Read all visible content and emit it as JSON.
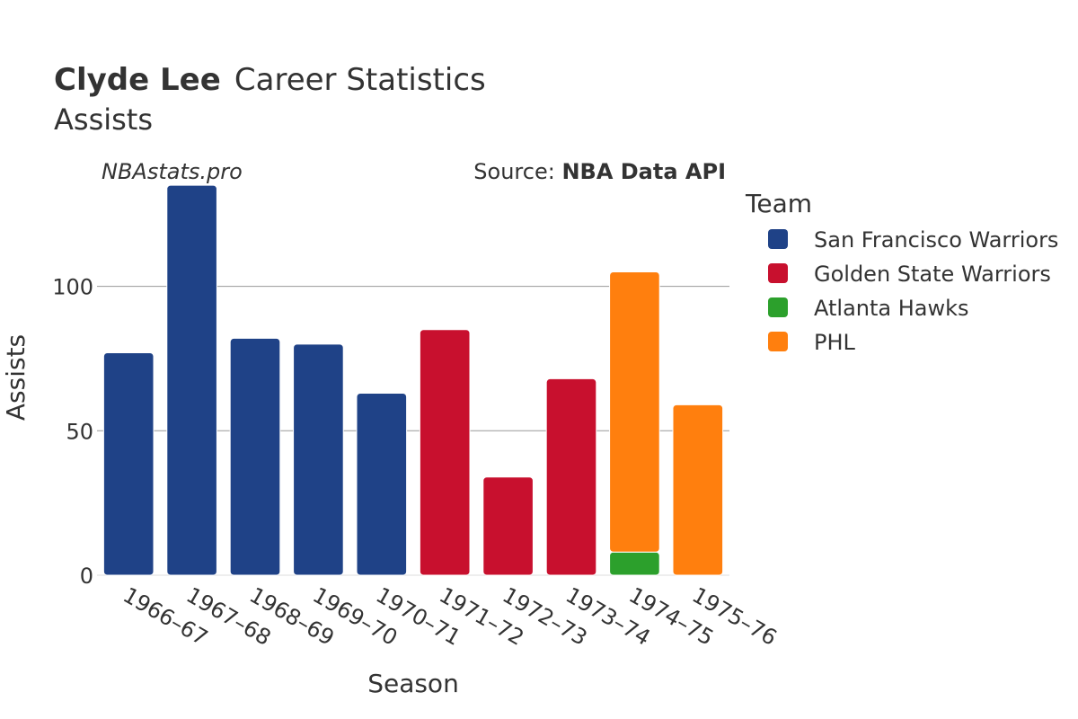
{
  "header": {
    "title_bold": "Clyde Lee",
    "title_rest": "Career Statistics",
    "subtitle": "Assists",
    "watermark": "NBAstats.pro",
    "source_prefix": "Source: ",
    "source_name": "NBA Data API"
  },
  "legend": {
    "title": "Team",
    "items": [
      {
        "label": "San Francisco Warriors",
        "color": "#1f4287"
      },
      {
        "label": "Golden State Warriors",
        "color": "#c8102e"
      },
      {
        "label": "Atlanta Hawks",
        "color": "#2ca02c"
      },
      {
        "label": "PHL",
        "color": "#ff7f0e"
      }
    ]
  },
  "chart_data": {
    "type": "bar",
    "stacked": true,
    "xlabel": "Season",
    "ylabel": "Assists",
    "ylim": [
      0,
      140
    ],
    "yticks": [
      0,
      50,
      100
    ],
    "grid": true,
    "legend_position": "right",
    "categories": [
      "1966–67",
      "1967–68",
      "1968–69",
      "1969–70",
      "1970–71",
      "1971–72",
      "1972–73",
      "1973–74",
      "1974–75",
      "1975–76"
    ],
    "series": [
      {
        "name": "San Francisco Warriors",
        "color": "#1f4287",
        "values": [
          77,
          135,
          82,
          80,
          63,
          0,
          0,
          0,
          0,
          0
        ]
      },
      {
        "name": "Golden State Warriors",
        "color": "#c8102e",
        "values": [
          0,
          0,
          0,
          0,
          0,
          85,
          34,
          68,
          0,
          0
        ]
      },
      {
        "name": "Atlanta Hawks",
        "color": "#2ca02c",
        "values": [
          0,
          0,
          0,
          0,
          0,
          0,
          0,
          0,
          8,
          0
        ]
      },
      {
        "name": "PHL",
        "color": "#ff7f0e",
        "values": [
          0,
          0,
          0,
          0,
          0,
          0,
          0,
          0,
          97,
          59
        ]
      }
    ]
  }
}
